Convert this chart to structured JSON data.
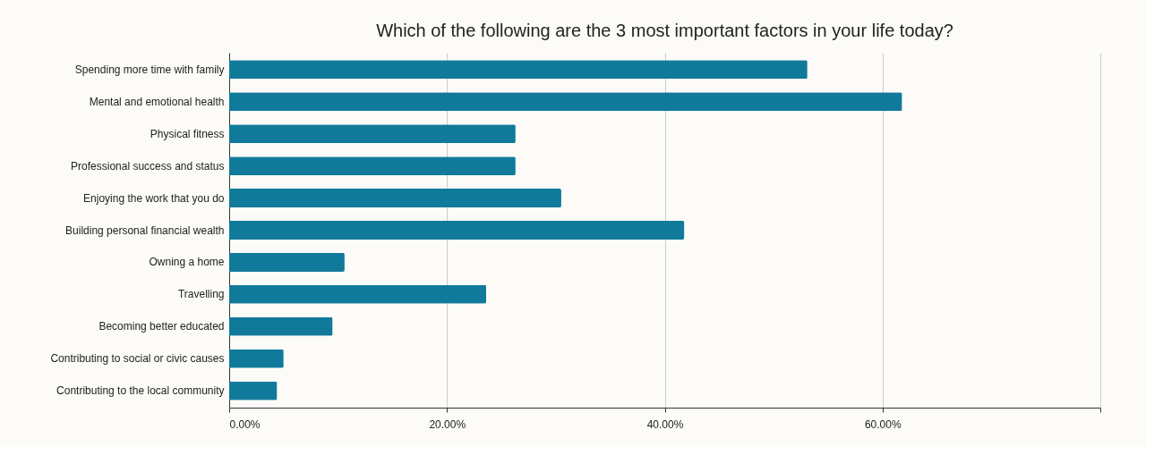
{
  "chart_data": {
    "type": "bar",
    "orientation": "horizontal",
    "title": "Which of the following are the 3 most important factors in your life today?",
    "categories": [
      "Spending more time with family",
      "Mental and emotional health",
      "Physical fitness",
      "Professional success and status",
      "Enjoying the work that you do",
      "Building personal financial wealth",
      "Owning a home",
      "Travelling",
      "Becoming better educated",
      "Contributing to social or civic causes",
      "Contributing to the local community"
    ],
    "values": [
      53.1,
      61.8,
      26.3,
      26.3,
      30.5,
      41.8,
      10.6,
      23.6,
      9.5,
      5.0,
      4.4
    ],
    "color": "#117a9b",
    "xlim": [
      0,
      80
    ],
    "xticks": [
      {
        "value": 0,
        "label": "0.00%"
      },
      {
        "value": 20,
        "label": "20.00%"
      },
      {
        "value": 40,
        "label": "40.00%"
      },
      {
        "value": 60,
        "label": "60.00%"
      },
      {
        "value": 80,
        "label": null
      }
    ],
    "grid": "x"
  }
}
